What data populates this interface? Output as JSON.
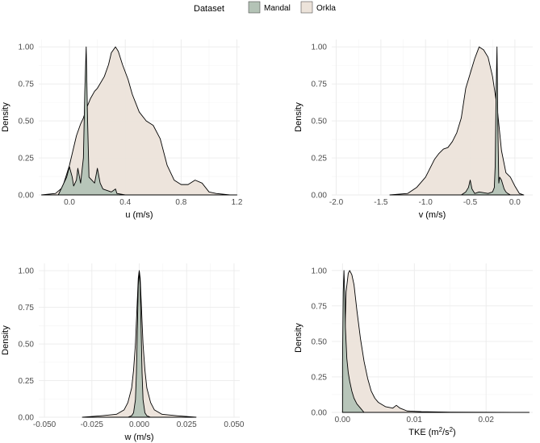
{
  "legend": {
    "title": "Dataset",
    "items": [
      {
        "name": "Mandal",
        "color": "#b4c3b6"
      },
      {
        "name": "Orkla",
        "color": "#ece3da"
      }
    ]
  },
  "chart_data": [
    {
      "type": "area",
      "id": "u",
      "xlabel": "u (m/s)",
      "ylabel": "Density",
      "xlim": [
        -0.22,
        1.22
      ],
      "ylim": [
        0,
        1.05
      ],
      "xticks": [
        0.0,
        0.4,
        0.8,
        1.2
      ],
      "xtick_labels": [
        "0.0",
        "0.4",
        "0.8",
        "1.2"
      ],
      "yticks": [
        0,
        0.25,
        0.5,
        0.75,
        1.0
      ],
      "ytick_labels": [
        "0.00",
        "0.25",
        "0.50",
        "0.75",
        "1.00"
      ],
      "series": [
        {
          "name": "Orkla",
          "x": [
            -0.2,
            -0.1,
            -0.05,
            0.0,
            0.05,
            0.08,
            0.1,
            0.12,
            0.15,
            0.18,
            0.2,
            0.25,
            0.28,
            0.3,
            0.33,
            0.35,
            0.38,
            0.42,
            0.45,
            0.5,
            0.55,
            0.6,
            0.65,
            0.7,
            0.75,
            0.8,
            0.85,
            0.9,
            0.95,
            1.0,
            1.05,
            1.15,
            1.2
          ],
          "y": [
            0.0,
            0.01,
            0.05,
            0.2,
            0.4,
            0.48,
            0.52,
            0.58,
            0.65,
            0.7,
            0.72,
            0.8,
            0.88,
            0.96,
            1.0,
            0.97,
            0.88,
            0.78,
            0.68,
            0.56,
            0.5,
            0.47,
            0.38,
            0.2,
            0.1,
            0.07,
            0.07,
            0.1,
            0.08,
            0.02,
            0.01,
            0.0,
            0.0
          ]
        },
        {
          "name": "Mandal",
          "x": [
            -0.08,
            -0.02,
            0.0,
            0.02,
            0.03,
            0.05,
            0.06,
            0.08,
            0.1,
            0.11,
            0.12,
            0.13,
            0.14,
            0.16,
            0.18,
            0.2,
            0.22,
            0.24,
            0.3,
            0.33,
            0.34,
            0.4,
            0.5
          ],
          "y": [
            0.0,
            0.12,
            0.19,
            0.12,
            0.06,
            0.1,
            0.18,
            0.08,
            0.25,
            0.7,
            1.0,
            0.5,
            0.12,
            0.1,
            0.08,
            0.18,
            0.08,
            0.04,
            0.02,
            0.04,
            0.01,
            0.0,
            0.0
          ]
        }
      ]
    },
    {
      "type": "area",
      "id": "v",
      "xlabel": "v (m/s)",
      "ylabel": "Density",
      "xlim": [
        -2.05,
        0.2
      ],
      "ylim": [
        0,
        1.05
      ],
      "xticks": [
        -2.0,
        -1.5,
        -1.0,
        -0.5,
        0.0
      ],
      "xtick_labels": [
        "-2.0",
        "-1.5",
        "-1.0",
        "-0.5",
        "0.0"
      ],
      "yticks": [
        0,
        0.25,
        0.5,
        0.75,
        1.0
      ],
      "ytick_labels": [
        "0.00",
        "0.25",
        "0.50",
        "0.75",
        "1.00"
      ],
      "series": [
        {
          "name": "Orkla",
          "x": [
            -1.4,
            -1.2,
            -1.1,
            -1.0,
            -0.95,
            -0.9,
            -0.85,
            -0.8,
            -0.75,
            -0.7,
            -0.65,
            -0.6,
            -0.55,
            -0.5,
            -0.45,
            -0.4,
            -0.35,
            -0.3,
            -0.25,
            -0.2,
            -0.15,
            -0.1,
            -0.05,
            0.0,
            0.05,
            0.1
          ],
          "y": [
            0.0,
            0.01,
            0.05,
            0.12,
            0.18,
            0.24,
            0.28,
            0.31,
            0.32,
            0.36,
            0.42,
            0.52,
            0.72,
            0.82,
            0.92,
            1.0,
            0.98,
            0.93,
            0.8,
            0.6,
            0.3,
            0.15,
            0.12,
            0.06,
            0.01,
            0.0
          ]
        },
        {
          "name": "Mandal",
          "x": [
            -0.6,
            -0.55,
            -0.52,
            -0.5,
            -0.48,
            -0.45,
            -0.4,
            -0.3,
            -0.25,
            -0.23,
            -0.22,
            -0.21,
            -0.2,
            -0.19,
            -0.18,
            -0.17,
            -0.15,
            -0.12,
            -0.1,
            -0.08,
            -0.05
          ],
          "y": [
            0.0,
            0.02,
            0.05,
            0.1,
            0.04,
            0.01,
            0.02,
            0.01,
            0.02,
            0.05,
            0.2,
            0.7,
            1.0,
            0.45,
            0.08,
            0.12,
            0.1,
            0.04,
            0.02,
            0.01,
            0.0
          ]
        }
      ]
    },
    {
      "type": "area",
      "id": "w",
      "xlabel": "w (m/s)",
      "ylabel": "Density",
      "xlim": [
        -0.053,
        0.053
      ],
      "ylim": [
        0,
        1.05
      ],
      "xticks": [
        -0.05,
        -0.025,
        0.0,
        0.025,
        0.05
      ],
      "xtick_labels": [
        "-0.050",
        "-0.025",
        "0.000",
        "0.025",
        "0.050"
      ],
      "yticks": [
        0,
        0.25,
        0.5,
        0.75,
        1.0
      ],
      "ytick_labels": [
        "0.00",
        "0.25",
        "0.50",
        "0.75",
        "1.00"
      ],
      "series": [
        {
          "name": "Orkla",
          "x": [
            -0.03,
            -0.02,
            -0.012,
            -0.008,
            -0.006,
            -0.004,
            -0.003,
            -0.002,
            -0.0015,
            -0.001,
            -0.0005,
            0.0,
            0.0005,
            0.001,
            0.0015,
            0.002,
            0.003,
            0.004,
            0.006,
            0.008,
            0.012,
            0.02,
            0.03
          ],
          "y": [
            0.0,
            0.01,
            0.02,
            0.05,
            0.1,
            0.2,
            0.32,
            0.5,
            0.65,
            0.8,
            0.95,
            1.0,
            0.95,
            0.8,
            0.65,
            0.5,
            0.32,
            0.2,
            0.1,
            0.05,
            0.02,
            0.01,
            0.0
          ]
        },
        {
          "name": "Mandal",
          "x": [
            -0.006,
            -0.004,
            -0.003,
            -0.002,
            -0.0015,
            -0.001,
            -0.0005,
            0.0,
            0.0005,
            0.001,
            0.0015,
            0.002,
            0.003,
            0.004,
            0.006
          ],
          "y": [
            0.0,
            0.01,
            0.03,
            0.12,
            0.3,
            0.6,
            0.9,
            1.0,
            0.9,
            0.6,
            0.3,
            0.12,
            0.03,
            0.01,
            0.0
          ]
        }
      ]
    },
    {
      "type": "area",
      "id": "tke",
      "xlabel": "TKE (m",
      "xlabel_sup1": "2",
      "xlabel_mid": "/s",
      "xlabel_sup2": "2",
      "xlabel_end": ")",
      "ylabel": "Density",
      "xlim": [
        -0.0015,
        0.0265
      ],
      "ylim": [
        0,
        1.05
      ],
      "xticks": [
        0.0,
        0.01,
        0.02
      ],
      "xtick_labels": [
        "0.00",
        "0.01",
        "0.02"
      ],
      "yticks": [
        0,
        0.25,
        0.5,
        0.75,
        1.0
      ],
      "ytick_labels": [
        "0.00",
        "0.25",
        "0.50",
        "0.75",
        "1.00"
      ],
      "series": [
        {
          "name": "Orkla",
          "x": [
            0.0,
            0.0002,
            0.0005,
            0.0008,
            0.001,
            0.0013,
            0.0016,
            0.002,
            0.0025,
            0.003,
            0.0035,
            0.004,
            0.0045,
            0.005,
            0.006,
            0.007,
            0.0075,
            0.008,
            0.009,
            0.011,
            0.015,
            0.02,
            0.026
          ],
          "y": [
            0.0,
            0.3,
            0.85,
            0.98,
            1.0,
            0.97,
            0.9,
            0.72,
            0.52,
            0.36,
            0.24,
            0.15,
            0.1,
            0.07,
            0.04,
            0.03,
            0.05,
            0.03,
            0.01,
            0.005,
            0.002,
            0.001,
            0.0
          ]
        },
        {
          "name": "Mandal",
          "x": [
            0.0,
            0.0001,
            0.0002,
            0.0003,
            0.0004,
            0.0006,
            0.0008,
            0.001,
            0.0013,
            0.0016,
            0.002,
            0.0025,
            0.003
          ],
          "y": [
            0.35,
            0.85,
            1.0,
            0.85,
            0.6,
            0.38,
            0.28,
            0.22,
            0.15,
            0.1,
            0.06,
            0.03,
            0.0
          ]
        }
      ]
    }
  ]
}
